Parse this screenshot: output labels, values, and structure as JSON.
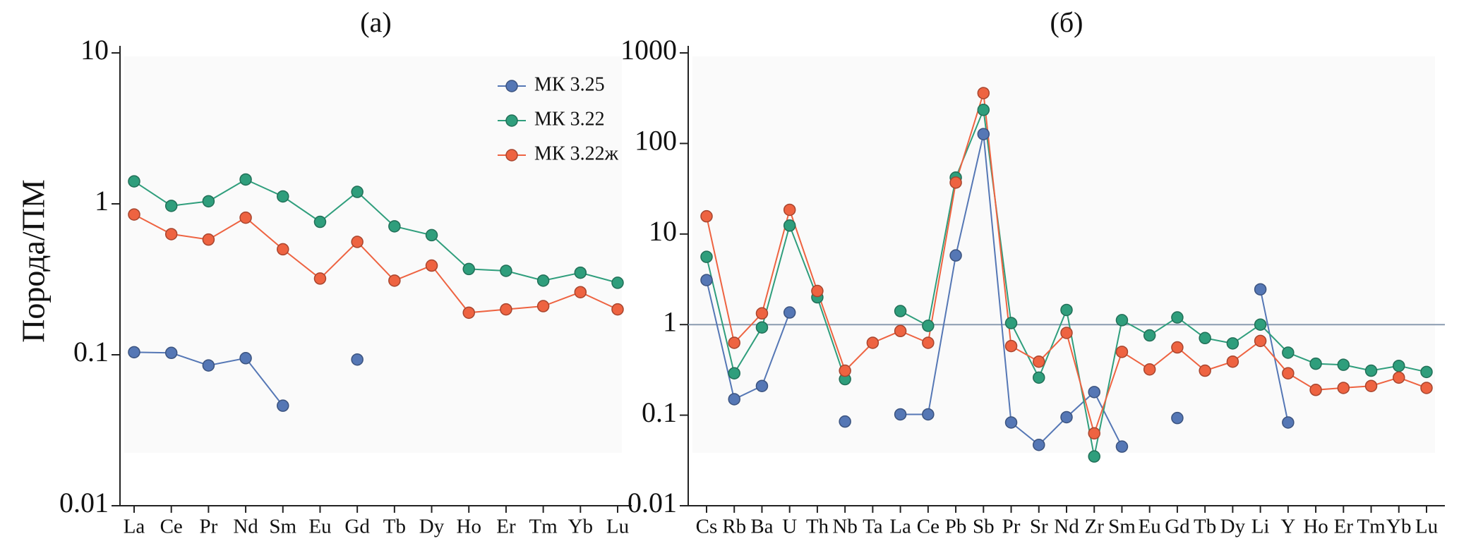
{
  "chart_data": [
    {
      "type": "line",
      "title": "(а)",
      "y_label": "Порода/ПМ",
      "log_scale": true,
      "legend": true,
      "legend_corner": "upper right",
      "categories": [
        "La",
        "Ce",
        "Pr",
        "Nd",
        "Sm",
        "Eu",
        "Gd",
        "Tb",
        "Dy",
        "Ho",
        "Er",
        "Tm",
        "Yb",
        "Lu"
      ],
      "ylim": [
        0.01,
        10
      ],
      "yticks": [
        0.01,
        0.1,
        1,
        10
      ],
      "series": [
        {
          "name": "МК 3.25",
          "color": "#5577b5",
          "values": [
            0.104,
            0.103,
            0.085,
            0.095,
            0.046,
            null,
            0.093,
            null,
            null,
            null,
            null,
            null,
            null,
            null
          ]
        },
        {
          "name": "МК 3.22",
          "color": "#2f9e7c",
          "values": [
            1.41,
            0.97,
            1.04,
            1.45,
            1.12,
            0.76,
            1.2,
            0.71,
            0.62,
            0.37,
            0.36,
            0.31,
            0.35,
            0.3
          ]
        },
        {
          "name": "МК 3.22ж",
          "color": "#ee6341",
          "values": [
            0.85,
            0.63,
            0.58,
            0.81,
            0.5,
            0.32,
            0.56,
            0.31,
            0.39,
            0.19,
            0.2,
            0.21,
            0.26,
            0.2
          ]
        }
      ]
    },
    {
      "type": "line",
      "title": "(б)",
      "log_scale": true,
      "legend": false,
      "reference_line": 1,
      "categories": [
        "Cs",
        "Rb",
        "Ba",
        "U",
        "Th",
        "Nb",
        "Ta",
        "La",
        "Ce",
        "Pb",
        "Sb",
        "Pr",
        "Sr",
        "Nd",
        "Zr",
        "Sm",
        "Eu",
        "Gd",
        "Tb",
        "Dy",
        "Li",
        "Y",
        "Ho",
        "Er",
        "Tm",
        "Yb",
        "Lu"
      ],
      "ylim": [
        0.01,
        1000
      ],
      "yticks": [
        0.01,
        0.1,
        1,
        10,
        100,
        1000
      ],
      "series": [
        {
          "name": "МК 3.25",
          "color": "#5577b5",
          "values": [
            3.1,
            0.15,
            0.21,
            1.36,
            null,
            0.085,
            null,
            0.102,
            0.102,
            5.8,
            127,
            0.083,
            0.047,
            0.095,
            0.18,
            0.045,
            null,
            0.093,
            null,
            null,
            2.45,
            0.083,
            null,
            null,
            null,
            null,
            null
          ]
        },
        {
          "name": "МК 3.22",
          "color": "#2f9e7c",
          "values": [
            5.6,
            0.29,
            0.93,
            12.4,
            2.0,
            0.25,
            null,
            1.41,
            0.97,
            42,
            235,
            1.04,
            0.26,
            1.45,
            0.035,
            1.12,
            0.76,
            1.2,
            0.71,
            0.62,
            1.0,
            0.49,
            0.37,
            0.36,
            0.31,
            0.35,
            0.3
          ]
        },
        {
          "name": "МК 3.22ж",
          "color": "#ee6341",
          "values": [
            15.7,
            0.63,
            1.33,
            18.5,
            2.35,
            0.31,
            0.63,
            0.85,
            0.63,
            37,
            360,
            0.58,
            0.39,
            0.81,
            0.063,
            0.5,
            0.32,
            0.56,
            0.31,
            0.39,
            0.66,
            0.29,
            0.19,
            0.2,
            0.21,
            0.26,
            0.2
          ]
        }
      ]
    }
  ]
}
